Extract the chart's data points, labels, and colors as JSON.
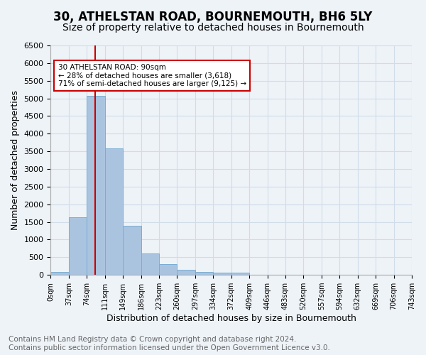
{
  "title": "30, ATHELSTAN ROAD, BOURNEMOUTH, BH6 5LY",
  "subtitle": "Size of property relative to detached houses in Bournemouth",
  "xlabel": "Distribution of detached houses by size in Bournemouth",
  "ylabel": "Number of detached properties",
  "footer_line1": "Contains HM Land Registry data © Crown copyright and database right 2024.",
  "footer_line2": "Contains public sector information licensed under the Open Government Licence v3.0.",
  "bar_values": [
    75,
    1625,
    5075,
    3575,
    1400,
    612,
    300,
    150,
    90,
    55,
    55,
    0,
    0,
    0,
    0,
    0,
    0,
    0,
    0,
    0
  ],
  "tick_labels": [
    "0sqm",
    "37sqm",
    "74sqm",
    "111sqm",
    "149sqm",
    "186sqm",
    "223sqm",
    "260sqm",
    "297sqm",
    "334sqm",
    "372sqm",
    "409sqm",
    "446sqm",
    "483sqm",
    "520sqm",
    "557sqm",
    "594sqm",
    "632sqm",
    "669sqm",
    "706sqm",
    "743sqm"
  ],
  "bar_color": "#aac4e0",
  "bar_edge_color": "#7aadd4",
  "vline_position": 2.45,
  "vline_color": "#cc0000",
  "annotation_text": "30 ATHELSTAN ROAD: 90sqm\n← 28% of detached houses are smaller (3,618)\n71% of semi-detached houses are larger (9,125) →",
  "annotation_box_color": "#ffffff",
  "annotation_box_edge_color": "#cc0000",
  "ylim": [
    0,
    6500
  ],
  "yticks": [
    0,
    500,
    1000,
    1500,
    2000,
    2500,
    3000,
    3500,
    4000,
    4500,
    5000,
    5500,
    6000,
    6500
  ],
  "grid_color": "#d0dce8",
  "background_color": "#eef3f8",
  "title_fontsize": 12,
  "subtitle_fontsize": 10,
  "xlabel_fontsize": 9,
  "ylabel_fontsize": 9,
  "footer_fontsize": 7.5
}
